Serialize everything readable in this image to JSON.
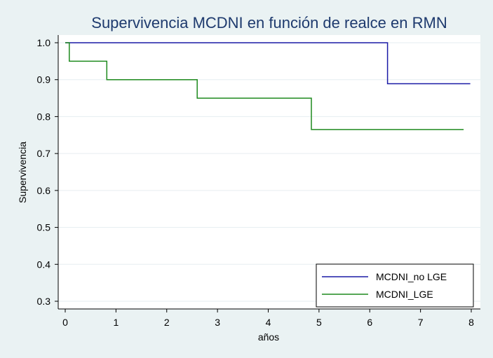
{
  "chart_data": {
    "type": "line",
    "step": true,
    "title": "Supervivencia MCDNI en función de realce en RMN",
    "xlabel": "años",
    "ylabel": "Supervivencia",
    "xlim": [
      0,
      8
    ],
    "ylim": [
      0.3,
      1.0
    ],
    "xticks": [
      "0",
      "1",
      "2",
      "3",
      "4",
      "5",
      "6",
      "7",
      "8"
    ],
    "yticks": [
      "0.3",
      "0.4",
      "0.5",
      "0.6",
      "0.7",
      "0.8",
      "0.9",
      "1.0"
    ],
    "grid": true,
    "legend_position": "bottom-right",
    "series": [
      {
        "name": "MCDNI_no LGE",
        "color": "#1a1aa6",
        "x": [
          0,
          6.35,
          6.35,
          7.98
        ],
        "y": [
          1.0,
          1.0,
          0.889,
          0.889
        ]
      },
      {
        "name": "MCDNI_LGE",
        "color": "#1e8a1e",
        "x": [
          0,
          0.08,
          0.08,
          0.82,
          0.82,
          2.6,
          2.6,
          4.85,
          4.85,
          7.85
        ],
        "y": [
          1.0,
          1.0,
          0.95,
          0.95,
          0.9,
          0.9,
          0.85,
          0.85,
          0.765,
          0.765
        ]
      }
    ]
  }
}
